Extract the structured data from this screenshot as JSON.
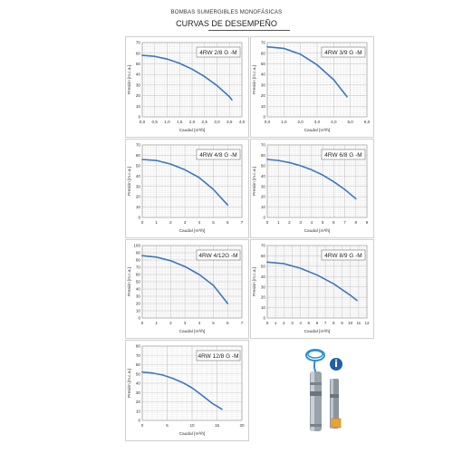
{
  "header": {
    "line1": "BOMBAS SUMERGIBLES MONOFÁSICAS",
    "line2": "CURVAS DE DESEMPEÑO"
  },
  "style": {
    "curve_color": "#3a78bf",
    "grid_major": "#c8c8c8",
    "grid_minor": "#e6e6e6"
  },
  "chart_data": [
    {
      "type": "line",
      "title": "4RW 2/8 G -M",
      "xlabel": "Caudal [m³/h]",
      "ylabel": "Presión [m.c.a.]",
      "xlim": [
        0,
        4
      ],
      "ylim": [
        0,
        70
      ],
      "xticks": [
        "0,0",
        "0,5",
        "1,0",
        "1,5",
        "2,0",
        "2,5",
        "3,0",
        "3,5",
        "4,0"
      ],
      "yticks": [
        "0",
        "10",
        "20",
        "30",
        "40",
        "50",
        "60",
        "70"
      ],
      "series": [
        {
          "x": [
            0,
            0.5,
            1,
            1.5,
            2,
            2.5,
            3,
            3.5,
            3.6
          ],
          "y": [
            58,
            57,
            54.5,
            50.5,
            45,
            38,
            29.5,
            19,
            16
          ]
        }
      ]
    },
    {
      "type": "line",
      "title": "4RW 3/9 G -M",
      "xlabel": "Caudal [m³/h]",
      "ylabel": "Presión [m.c.a.]",
      "xlim": [
        0,
        6
      ],
      "ylim": [
        0,
        70
      ],
      "xticks": [
        "0,0",
        "1,0",
        "2,0",
        "3,0",
        "4,0",
        "5,0",
        "6,0"
      ],
      "yticks": [
        "0",
        "10",
        "20",
        "30",
        "40",
        "50",
        "60",
        "70"
      ],
      "series": [
        {
          "x": [
            0,
            1,
            2,
            3,
            4,
            4.8
          ],
          "y": [
            66,
            64.5,
            59,
            49,
            35,
            19
          ]
        }
      ]
    },
    {
      "type": "line",
      "title": "4RW 4/8 G -M",
      "xlabel": "Caudal [m³/h]",
      "ylabel": "Presión [m.c.a.]",
      "xlim": [
        0,
        7
      ],
      "ylim": [
        0,
        70
      ],
      "xticks": [
        "0",
        "1",
        "2",
        "3",
        "4",
        "5",
        "6",
        "7"
      ],
      "yticks": [
        "0",
        "10",
        "20",
        "30",
        "40",
        "50",
        "60",
        "70"
      ],
      "series": [
        {
          "x": [
            0,
            1,
            2,
            3,
            4,
            5,
            6
          ],
          "y": [
            56,
            55,
            51.5,
            46,
            38.5,
            27,
            12
          ]
        }
      ]
    },
    {
      "type": "line",
      "title": "4RW 6/8 G -M",
      "xlabel": "Caudal [m³/h]",
      "ylabel": "Presión [m.c.a.]",
      "xlim": [
        0,
        9
      ],
      "ylim": [
        0,
        70
      ],
      "xticks": [
        "0",
        "1",
        "2",
        "3",
        "4",
        "5",
        "6",
        "7",
        "8",
        "9"
      ],
      "yticks": [
        "0",
        "10",
        "20",
        "30",
        "40",
        "50",
        "60",
        "70"
      ],
      "series": [
        {
          "x": [
            0,
            1,
            2,
            3,
            4,
            5,
            6,
            7,
            8
          ],
          "y": [
            56,
            55,
            53,
            50,
            46,
            41,
            34.5,
            27,
            18
          ]
        }
      ]
    },
    {
      "type": "line",
      "title": "4RW 4/12G -M",
      "xlabel": "Caudal [m³/h]",
      "ylabel": "Presión [m.c.a.]",
      "xlim": [
        0,
        7
      ],
      "ylim": [
        0,
        100
      ],
      "xticks": [
        "0",
        "1",
        "2",
        "3",
        "4",
        "5",
        "6",
        "7"
      ],
      "yticks": [
        "0",
        "10",
        "20",
        "30",
        "40",
        "50",
        "60",
        "70",
        "80",
        "90",
        "100"
      ],
      "series": [
        {
          "x": [
            0,
            1,
            2,
            3,
            4,
            5,
            6
          ],
          "y": [
            86,
            84,
            79,
            71,
            60,
            45,
            20
          ]
        }
      ]
    },
    {
      "type": "line",
      "title": "4RW 8/9 G -M",
      "xlabel": "Caudal [m³/h]",
      "ylabel": "Presión [m.c.a.]",
      "xlim": [
        0,
        12
      ],
      "ylim": [
        0,
        70
      ],
      "xticks": [
        "0",
        "1",
        "2",
        "3",
        "4",
        "5",
        "6",
        "7",
        "8",
        "9",
        "10",
        "11",
        "12"
      ],
      "yticks": [
        "0",
        "10",
        "20",
        "30",
        "40",
        "50",
        "60",
        "70"
      ],
      "series": [
        {
          "x": [
            0,
            2,
            4,
            6,
            8,
            10,
            10.8
          ],
          "y": [
            54,
            52.5,
            48,
            41.5,
            33,
            22,
            17
          ]
        }
      ]
    },
    {
      "type": "line",
      "title": "4RW 12/8 G -M",
      "xlabel": "Caudal [m³/h]",
      "ylabel": "Presión [m.c.a.]",
      "xlim": [
        0,
        20
      ],
      "ylim": [
        0,
        80
      ],
      "xticks": [
        "0",
        "5",
        "10",
        "15",
        "20"
      ],
      "yticks": [
        "0",
        "10",
        "20",
        "30",
        "40",
        "50",
        "60",
        "70",
        "80"
      ],
      "series": [
        {
          "x": [
            0,
            2,
            4,
            6,
            8,
            10,
            12,
            14,
            16
          ],
          "y": [
            52,
            51,
            49,
            45.5,
            41,
            35,
            27,
            18.5,
            12
          ]
        }
      ]
    }
  ]
}
